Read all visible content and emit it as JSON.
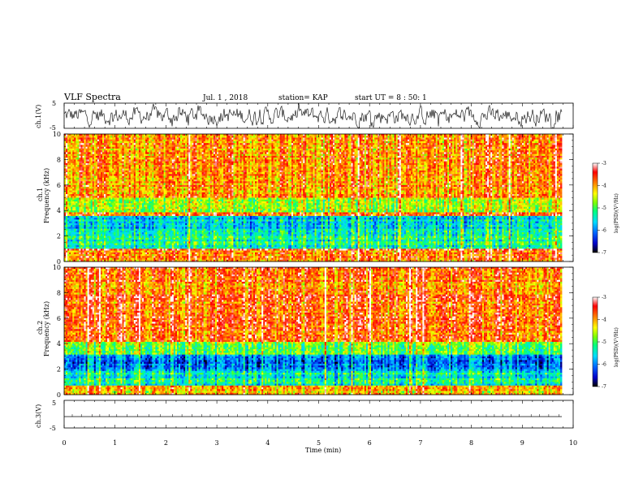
{
  "header": {
    "title": "VLF Spectra",
    "date": "Jul. 1 , 2018",
    "station": "station= KAP",
    "start": "start UT = 8 : 50: 1"
  },
  "colors": {
    "axis": "#000000",
    "trace": "#000000",
    "colormap": [
      "#000000",
      "#0000c8",
      "#0064ff",
      "#00dcff",
      "#00ff80",
      "#80ff00",
      "#ffff00",
      "#ff8000",
      "#ff0000",
      "#ffffff"
    ]
  },
  "chart_data": [
    {
      "type": "line",
      "panel": "ch1-waveform",
      "ylabel": "ch.1(V)",
      "ylim": [
        -5,
        5
      ],
      "yticks": [
        "5",
        "-5"
      ],
      "x_range": [
        0,
        9.8
      ],
      "description_values": {
        "amplitude_typical": 3,
        "offset": 0
      },
      "grid": false
    },
    {
      "type": "heatmap",
      "panel": "ch1-spectrogram",
      "ylabel": "ch.1",
      "ylabel2": "Frequency (kHz)",
      "ylim": [
        0,
        10
      ],
      "yticks": [
        "0",
        "2",
        "4",
        "6",
        "8",
        "10"
      ],
      "bands_khz": [
        {
          "from": 0,
          "to": 0.8,
          "level": -3.8
        },
        {
          "from": 0.8,
          "to": 1.0,
          "level": -3.2
        },
        {
          "from": 1.0,
          "to": 2.2,
          "level": -5.2
        },
        {
          "from": 2.2,
          "to": 3.6,
          "level": -5.6
        },
        {
          "from": 3.6,
          "to": 3.9,
          "level": -3.6
        },
        {
          "from": 3.9,
          "to": 5.0,
          "level": -4.6
        },
        {
          "from": 5.0,
          "to": 10,
          "level": -3.9
        }
      ],
      "colorbar": {
        "label": "log(PSD)(V²/Hz)",
        "ticks": [
          "-3",
          "-4",
          "-5",
          "-6",
          "-7"
        ],
        "range": [
          -7,
          -3
        ]
      }
    },
    {
      "type": "heatmap",
      "panel": "ch2-spectrogram",
      "ylabel": "ch.2",
      "ylabel2": "Frequency (kHz)",
      "ylim": [
        0,
        10
      ],
      "yticks": [
        "0",
        "2",
        "4",
        "6",
        "8",
        "10"
      ],
      "bands_khz": [
        {
          "from": 0,
          "to": 0.7,
          "level": -4.2
        },
        {
          "from": 0.7,
          "to": 1.9,
          "level": -5.4
        },
        {
          "from": 1.9,
          "to": 3.1,
          "level": -6.0
        },
        {
          "from": 3.1,
          "to": 4.2,
          "level": -4.8
        },
        {
          "from": 4.2,
          "to": 10,
          "level": -3.8
        }
      ],
      "colorbar": {
        "label": "log(PSD)(V²/Hz)",
        "ticks": [
          "-3",
          "-4",
          "-5",
          "-6",
          "-7"
        ],
        "range": [
          -7,
          -3
        ]
      }
    },
    {
      "type": "line",
      "panel": "ch3-waveform",
      "ylabel": "ch.3(V)",
      "ylim": [
        -5,
        5
      ],
      "yticks": [
        "5",
        "-5"
      ],
      "values": {
        "level": 0
      },
      "grid": false
    }
  ],
  "xaxis": {
    "label": "Time (min)",
    "ticks": [
      "0",
      "1",
      "2",
      "3",
      "4",
      "5",
      "6",
      "7",
      "8",
      "9",
      "10"
    ],
    "range": [
      0,
      10
    ]
  }
}
